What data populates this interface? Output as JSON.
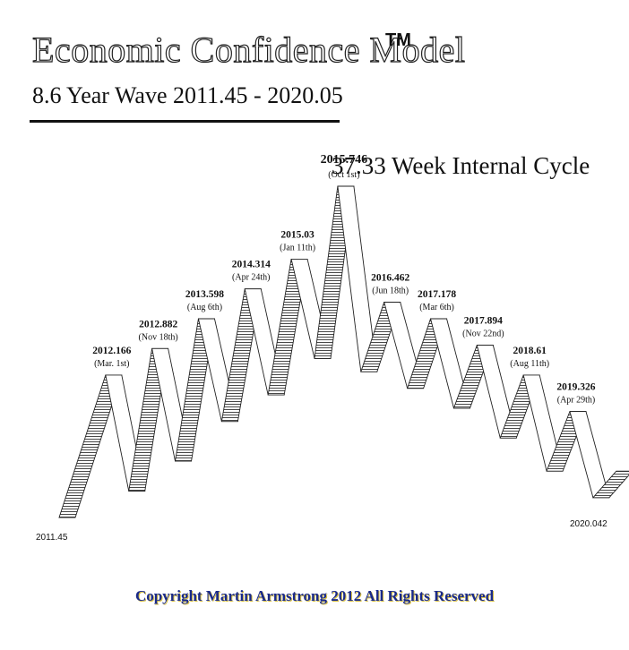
{
  "title": "Economic Confidence Model",
  "trademark": "TM",
  "subtitle": "8.6 Year Wave 2011.45 - 2020.05",
  "cycle_label": "37.33 Week Internal Cycle",
  "copyright": "Copyright Martin Armstrong 2012 All Rights Reserved",
  "chart_data": {
    "type": "line",
    "start_label": "2011.45",
    "end_label": "2020.042",
    "x_range": [
      2011.45,
      2020.1
    ],
    "peaks": [
      {
        "year": "2012.166",
        "date": "(Mar. 1st)",
        "x": 2012.166,
        "level": 0.43
      },
      {
        "year": "2012.882",
        "date": "(Nov 18th)",
        "x": 2012.882,
        "level": 0.51
      },
      {
        "year": "2013.598",
        "date": "(Aug 6th)",
        "x": 2013.598,
        "level": 0.6
      },
      {
        "year": "2014.314",
        "date": "(Apr 24th)",
        "x": 2014.314,
        "level": 0.69
      },
      {
        "year": "2015.03",
        "date": "(Jan 11th)",
        "x": 2015.03,
        "level": 0.78
      },
      {
        "year": "2015.746",
        "date": "(Oct 1st)",
        "x": 2015.746,
        "level": 1.0
      },
      {
        "year": "2016.462",
        "date": "(Jun 18th)",
        "x": 2016.462,
        "level": 0.65
      },
      {
        "year": "2017.178",
        "date": "(Mar 6th)",
        "x": 2017.178,
        "level": 0.6
      },
      {
        "year": "2017.894",
        "date": "(Nov 22nd)",
        "x": 2017.894,
        "level": 0.52
      },
      {
        "year": "2018.61",
        "date": "(Aug 11th)",
        "x": 2018.61,
        "level": 0.43
      },
      {
        "year": "2019.326",
        "date": "(Apr 29th)",
        "x": 2019.326,
        "level": 0.32
      }
    ],
    "troughs": [
      {
        "x": 2011.45,
        "level": 0.0
      },
      {
        "x": 2012.524,
        "level": 0.08
      },
      {
        "x": 2013.24,
        "level": 0.17
      },
      {
        "x": 2013.956,
        "level": 0.29
      },
      {
        "x": 2014.672,
        "level": 0.37
      },
      {
        "x": 2015.388,
        "level": 0.48
      },
      {
        "x": 2016.104,
        "level": 0.44
      },
      {
        "x": 2016.82,
        "level": 0.39
      },
      {
        "x": 2017.536,
        "level": 0.33
      },
      {
        "x": 2018.252,
        "level": 0.24
      },
      {
        "x": 2018.968,
        "level": 0.14
      },
      {
        "x": 2019.684,
        "level": 0.06
      }
    ],
    "end_point": {
      "x": 2020.042,
      "level": 0.14
    }
  }
}
